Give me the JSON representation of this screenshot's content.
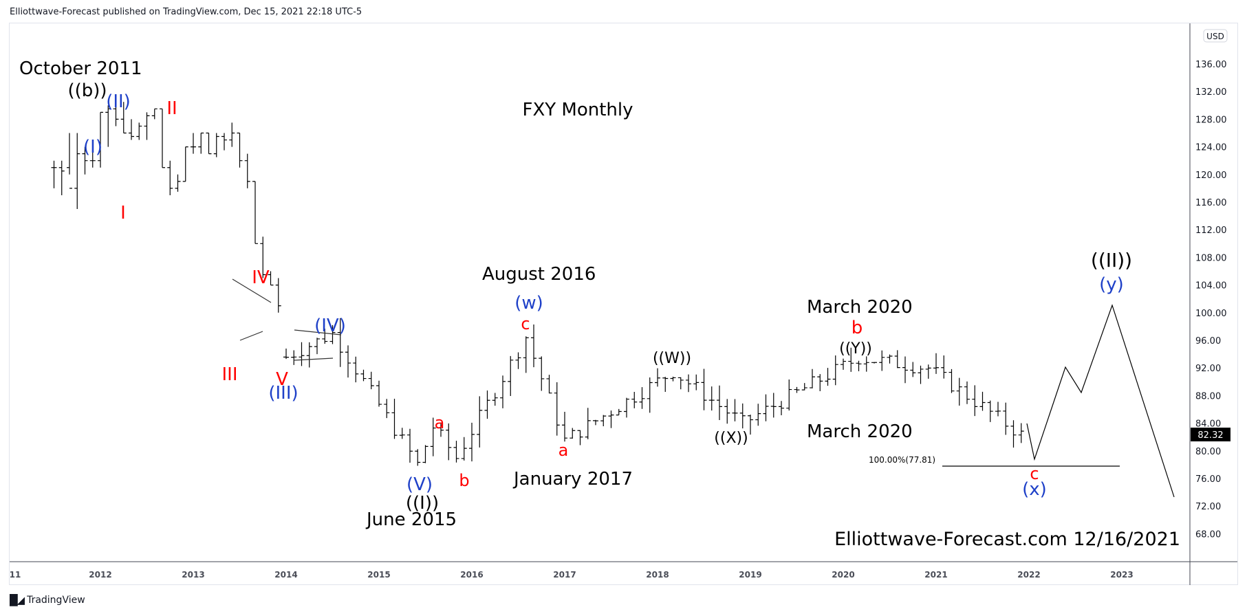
{
  "header": {
    "published_line": "Elliottwave-Forecast published on TradingView.com, Dec 15, 2021 22:18 UTC-5"
  },
  "footer": {
    "logo_icon": "tradingview-logo-icon",
    "brand": "TradingView"
  },
  "price_axis": {
    "currency_badge": "USD",
    "ticks": [
      "136.00",
      "132.00",
      "128.00",
      "124.00",
      "120.00",
      "116.00",
      "112.00",
      "108.00",
      "104.00",
      "100.00",
      "96.00",
      "92.00",
      "88.00",
      "84.00",
      "80.00",
      "76.00",
      "72.00",
      "68.00"
    ],
    "last_price": "82.32",
    "last_price_bg": "#000000"
  },
  "time_axis": {
    "ticks": [
      "11",
      "2012",
      "2013",
      "2014",
      "2015",
      "2016",
      "2017",
      "2018",
      "2019",
      "2020",
      "2021",
      "2022",
      "2023"
    ]
  },
  "annotations": {
    "title": "FXY Monthly",
    "watermark": "Elliottwave-Forecast.com 12/16/2021",
    "fib_label": "100.00%(77.81)",
    "dates": {
      "oct2011": "October 2011",
      "aug2016": "August 2016",
      "jan2017": "January 2017",
      "june2015": "June 2015",
      "mar2020_top": "March 2020",
      "mar2020_bottom": "March 2020"
    },
    "waves": {
      "b_double": "((b))",
      "I_blue": "(I)",
      "II_blue": "(II)",
      "I_red": "I",
      "II_red": "II",
      "III_red": "III",
      "IV_red": "IV",
      "V_red": "V",
      "III_blue": "(III)",
      "IV_blue": "(IV)",
      "V_blue": "(V)",
      "I_double": "((I))",
      "a_red_2015": "a",
      "b_red_2015": "b",
      "c_red_2016": "c",
      "w_blue": "(w)",
      "a_red_2017": "a",
      "W_double": "((W))",
      "X_double": "((X))",
      "Y_double": "((Y))",
      "b_red_2020": "b",
      "c_red_2022": "c",
      "x_blue": "(x)",
      "y_blue": "(y)",
      "II_double": "((II))"
    },
    "colors": {
      "red": "#ff0000",
      "blue": "#1e40c8",
      "black": "#000000"
    }
  },
  "chart_data": {
    "type": "ohlc",
    "title": "FXY Monthly",
    "symbol": "FXY",
    "interval": "Monthly",
    "xlabel": "",
    "ylabel": "USD",
    "ylim": [
      64,
      140
    ],
    "x_range": [
      "2011-06",
      "2023-10"
    ],
    "grid": false,
    "last_price": 82.32,
    "fib_extension": {
      "label": "100.00%",
      "level": 77.81
    },
    "key_points": [
      {
        "date": "2011-10",
        "price": 130.0,
        "label": "((b)) October 2011"
      },
      {
        "date": "2011-11",
        "price": 126.0,
        "label": "(I)"
      },
      {
        "date": "2012-01",
        "price": 129.5,
        "label": "(II)"
      },
      {
        "date": "2012-03",
        "price": 117.0,
        "label": "I"
      },
      {
        "date": "2012-09",
        "price": 127.5,
        "label": "II"
      },
      {
        "date": "2013-05",
        "price": 94.0,
        "label": "III"
      },
      {
        "date": "2013-06",
        "price": 104.5,
        "label": "IV"
      },
      {
        "date": "2013-12",
        "price": 93.0,
        "label": "V / (III)"
      },
      {
        "date": "2014-07",
        "price": 97.0,
        "label": "(IV)"
      },
      {
        "date": "2015-06",
        "price": 78.0,
        "label": "(V) / ((I)) June 2015"
      },
      {
        "date": "2015-08",
        "price": 83.5,
        "label": "a"
      },
      {
        "date": "2015-11",
        "price": 79.0,
        "label": "b"
      },
      {
        "date": "2016-08",
        "price": 96.5,
        "label": "c / (w) August 2016"
      },
      {
        "date": "2017-01",
        "price": 81.5,
        "label": "a January 2017"
      },
      {
        "date": "2018-03",
        "price": 91.5,
        "label": "((W))"
      },
      {
        "date": "2018-12",
        "price": 84.0,
        "label": "((X))"
      },
      {
        "date": "2020-03",
        "price": 93.5,
        "label": "((Y)) / b March 2020"
      },
      {
        "date": "2020-12",
        "price": 92.0,
        "label": ""
      },
      {
        "date": "2021-12",
        "price": 82.32,
        "label": "last"
      }
    ],
    "projection_path": [
      {
        "date": "2022-01",
        "price": 84.0
      },
      {
        "date": "2022-02",
        "price": 79.0,
        "label": "c / (x)"
      },
      {
        "date": "2022-06",
        "price": 92.0
      },
      {
        "date": "2022-08",
        "price": 88.5
      },
      {
        "date": "2022-12",
        "price": 101.0,
        "label": "(y) / ((II))"
      },
      {
        "date": "2023-08",
        "price": 74.0
      }
    ],
    "bars": [
      {
        "d": "2011-07",
        "o": 121,
        "h": 122,
        "l": 118,
        "c": 121
      },
      {
        "d": "2011-08",
        "o": 121,
        "h": 122,
        "l": 117,
        "c": 120.5
      },
      {
        "d": "2011-09",
        "o": 121,
        "h": 126,
        "l": 120,
        "c": 118
      },
      {
        "d": "2011-10",
        "o": 118,
        "h": 126,
        "l": 115,
        "c": 123
      },
      {
        "d": "2011-11",
        "o": 123,
        "h": 124,
        "l": 120,
        "c": 122
      },
      {
        "d": "2011-12",
        "o": 122,
        "h": 124,
        "l": 121,
        "c": 122
      },
      {
        "d": "2012-01",
        "o": 122,
        "h": 129,
        "l": 121,
        "c": 129
      },
      {
        "d": "2012-02",
        "o": 129,
        "h": 130,
        "l": 124,
        "c": 129.5
      },
      {
        "d": "2012-03",
        "o": 129.5,
        "h": 130,
        "l": 127,
        "c": 128
      },
      {
        "d": "2012-04",
        "o": 128,
        "h": 130.5,
        "l": 126,
        "c": 126
      },
      {
        "d": "2012-05",
        "o": 126,
        "h": 128,
        "l": 125,
        "c": 125.5
      },
      {
        "d": "2012-06",
        "o": 125.5,
        "h": 127.5,
        "l": 125,
        "c": 127
      },
      {
        "d": "2012-07",
        "o": 127,
        "h": 129,
        "l": 125,
        "c": 128.5
      },
      {
        "d": "2012-08",
        "o": 128.5,
        "h": 129.5,
        "l": 128,
        "c": 129.5
      },
      {
        "d": "2012-09",
        "o": 129.5,
        "h": 129.5,
        "l": 121,
        "c": 121
      },
      {
        "d": "2012-10",
        "o": 121,
        "h": 122,
        "l": 117,
        "c": 118
      },
      {
        "d": "2012-11",
        "o": 118,
        "h": 120,
        "l": 117.5,
        "c": 119
      },
      {
        "d": "2012-12",
        "o": 119,
        "h": 124,
        "l": 119,
        "c": 124
      },
      {
        "d": "2013-01",
        "o": 124,
        "h": 126,
        "l": 123,
        "c": 124
      },
      {
        "d": "2013-02",
        "o": 124,
        "h": 126,
        "l": 123,
        "c": 126
      },
      {
        "d": "2013-03",
        "o": 126,
        "h": 126,
        "l": 123,
        "c": 123
      },
      {
        "d": "2013-04",
        "o": 123,
        "h": 126,
        "l": 122.5,
        "c": 125.5
      },
      {
        "d": "2013-05",
        "o": 125.5,
        "h": 126,
        "l": 123.5,
        "c": 125
      },
      {
        "d": "2013-06",
        "o": 125,
        "h": 127.5,
        "l": 124,
        "c": 126
      },
      {
        "d": "2013-07",
        "o": 126,
        "h": 126,
        "l": 121,
        "c": 122
      },
      {
        "d": "2013-08",
        "o": 122,
        "h": 123,
        "l": 118,
        "c": 119
      },
      {
        "d": "2013-09",
        "o": 119,
        "h": 119,
        "l": 110,
        "c": 110
      },
      {
        "d": "2013-10",
        "o": 110,
        "h": 111,
        "l": 105,
        "c": 105.5
      },
      {
        "d": "2013-11",
        "o": 105.5,
        "h": 106,
        "l": 104,
        "c": 104
      },
      {
        "d": "2013-12",
        "o": 104,
        "h": 105,
        "l": 100,
        "c": 101
      }
    ]
  }
}
